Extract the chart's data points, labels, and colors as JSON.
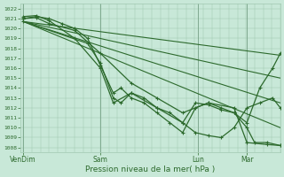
{
  "bg_color": "#c8e8d8",
  "grid_color": "#a0c8b0",
  "line_color": "#2d6a2d",
  "xlabel": "Pression niveau de la mer( hPa )",
  "ylim": [
    1007.5,
    1022.5
  ],
  "yticks": [
    1008,
    1009,
    1010,
    1011,
    1012,
    1013,
    1014,
    1015,
    1016,
    1017,
    1018,
    1019,
    1020,
    1021,
    1022
  ],
  "xtick_labels": [
    "VenDim",
    "Sam",
    "Lun",
    "Mar"
  ],
  "xtick_pos": [
    0.0,
    0.3,
    0.68,
    0.87
  ],
  "xlim": [
    -0.01,
    1.0
  ],
  "lines_plain": [
    {
      "x": [
        0.0,
        1.0
      ],
      "y": [
        1020.7,
        1017.3
      ]
    },
    {
      "x": [
        0.0,
        1.0
      ],
      "y": [
        1020.7,
        1015.0
      ]
    },
    {
      "x": [
        0.0,
        1.0
      ],
      "y": [
        1020.7,
        1012.5
      ]
    },
    {
      "x": [
        0.0,
        1.0
      ],
      "y": [
        1020.7,
        1010.0
      ]
    }
  ],
  "lines_marked": [
    {
      "x": [
        0.0,
        0.25,
        0.3,
        0.35,
        0.38,
        0.42,
        0.47,
        0.52,
        0.57,
        0.62,
        0.67,
        0.72,
        0.77,
        0.82,
        0.87,
        0.92,
        0.97,
        1.0
      ],
      "y": [
        1020.7,
        1018.5,
        1016.5,
        1013.0,
        1012.5,
        1013.5,
        1013.0,
        1012.0,
        1011.5,
        1010.5,
        1009.5,
        1009.2,
        1009.0,
        1010.0,
        1012.0,
        1012.5,
        1013.0,
        1012.0
      ]
    },
    {
      "x": [
        0.0,
        0.05,
        0.1,
        0.15,
        0.2,
        0.25,
        0.3,
        0.35,
        0.38,
        0.42,
        0.47,
        0.52,
        0.57,
        0.62,
        0.67,
        0.72,
        0.77,
        0.82,
        0.87,
        0.9,
        0.95,
        1.0
      ],
      "y": [
        1021.0,
        1021.2,
        1021.0,
        1020.5,
        1020.0,
        1019.0,
        1016.3,
        1013.5,
        1014.0,
        1013.0,
        1012.5,
        1011.5,
        1010.5,
        1009.5,
        1012.0,
        1012.5,
        1012.0,
        1011.5,
        1010.0,
        1008.5,
        1008.5,
        1008.2
      ]
    },
    {
      "x": [
        0.0,
        0.05,
        0.1,
        0.2,
        0.3,
        0.35,
        0.42,
        0.52,
        0.62,
        0.67,
        0.72,
        0.77,
        0.82,
        0.87,
        0.92,
        0.97,
        1.0
      ],
      "y": [
        1021.2,
        1021.3,
        1020.8,
        1019.0,
        1016.0,
        1012.5,
        1013.5,
        1012.0,
        1010.5,
        1012.5,
        1012.3,
        1011.8,
        1011.5,
        1010.5,
        1014.0,
        1016.0,
        1017.5
      ]
    },
    {
      "x": [
        0.0,
        0.05,
        0.1,
        0.2,
        0.3,
        0.42,
        0.52,
        0.62,
        0.72,
        0.82,
        0.87,
        0.95,
        1.0
      ],
      "y": [
        1021.0,
        1021.1,
        1020.5,
        1019.8,
        1017.5,
        1014.5,
        1013.0,
        1011.5,
        1012.5,
        1012.0,
        1008.5,
        1008.3,
        1008.2
      ]
    }
  ]
}
